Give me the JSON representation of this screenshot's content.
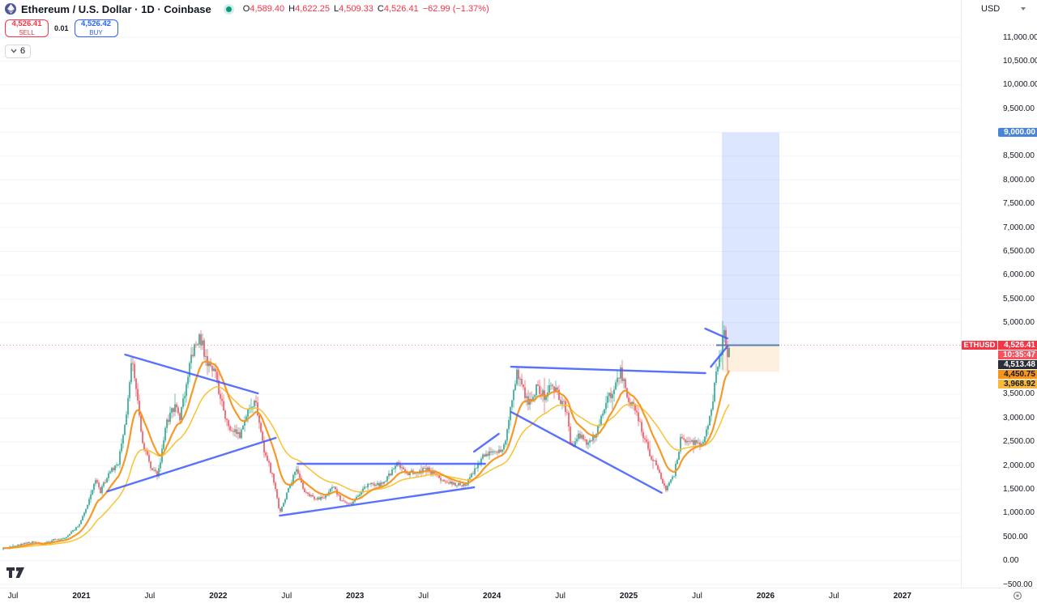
{
  "header": {
    "title": "Ethereum / U.S. Dollar · 1D · Coinbase",
    "ohlc": {
      "o_label": "O",
      "o": "4,589.40",
      "h_label": "H",
      "h": "4,622.25",
      "l_label": "L",
      "l": "4,509.33",
      "c_label": "C",
      "c": "4,526.41",
      "change": "−62.99 (−1.37%)"
    },
    "sell": {
      "price": "4,526.41",
      "label": "SELL"
    },
    "buy": {
      "price": "4,526.42",
      "label": "BUY"
    },
    "spread": "0.01",
    "indicators_count": "6",
    "currency": "USD"
  },
  "colors": {
    "up": "#089981",
    "down": "#f23645",
    "buy_blue": "#2962ff",
    "trendline": "#3d5afe",
    "ma_fast": "#f7941d",
    "ma_slow": "#fbbf24",
    "entry_line": "#5b7db1",
    "profit_fill": "rgba(41,98,255,0.16)",
    "stop_fill": "rgba(247,148,29,0.14)",
    "target_label_bg": "#4a84d9",
    "dark_label_bg": "#2a2e39",
    "orange_label_bg": "#f7941d",
    "amber_label_bg": "#f9b93c",
    "countdown_bg": "#f7525f",
    "grid": "#f1f3f8"
  },
  "price_axis": {
    "labels": [
      {
        "v": 11000,
        "label": "11,000.00"
      },
      {
        "v": 10500,
        "label": "10,500.00"
      },
      {
        "v": 10000,
        "label": "10,000.00"
      },
      {
        "v": 9500,
        "label": "9,500.00"
      },
      {
        "v": 9000,
        "label": "9,000.00"
      },
      {
        "v": 8500,
        "label": "8,500.00"
      },
      {
        "v": 8000,
        "label": "8,000.00"
      },
      {
        "v": 7500,
        "label": "7,500.00"
      },
      {
        "v": 7000,
        "label": "7,000.00"
      },
      {
        "v": 6500,
        "label": "6,500.00"
      },
      {
        "v": 6000,
        "label": "6,000.00"
      },
      {
        "v": 5500,
        "label": "5,500.00"
      },
      {
        "v": 5000,
        "label": "5,000.00"
      },
      {
        "v": 3500,
        "label": "3,500.00"
      },
      {
        "v": 3000,
        "label": "3,000.00"
      },
      {
        "v": 2500,
        "label": "2,500.00"
      },
      {
        "v": 2000,
        "label": "2,000.00"
      },
      {
        "v": 1500,
        "label": "1,500.00"
      },
      {
        "v": 1000,
        "label": "1,000.00"
      },
      {
        "v": 500,
        "label": "500.00"
      },
      {
        "v": 0,
        "label": "0.00"
      },
      {
        "v": -500,
        "label": "−500.00"
      }
    ],
    "target_marker": {
      "label": "9,000.00",
      "p": 9000
    },
    "symbol_marker": {
      "symbol": "ETHUSD",
      "price": "4,526.41",
      "countdown": "10:35:47",
      "p": 4526.41
    },
    "indicator_markers": [
      {
        "label": "4,513.48",
        "bg": "dark"
      },
      {
        "label": "4,450.75",
        "bg": "orange"
      },
      {
        "label": "3,968.92",
        "bg": "amber"
      }
    ]
  },
  "time_axis": {
    "labels": [
      {
        "label": "Jul",
        "t": 2020.5
      },
      {
        "label": "2021",
        "t": 2021,
        "year": true
      },
      {
        "label": "Jul",
        "t": 2021.5
      },
      {
        "label": "2022",
        "t": 2022,
        "year": true
      },
      {
        "label": "Jul",
        "t": 2022.5
      },
      {
        "label": "2023",
        "t": 2023,
        "year": true
      },
      {
        "label": "Jul",
        "t": 2023.5
      },
      {
        "label": "2024",
        "t": 2024,
        "year": true
      },
      {
        "label": "Jul",
        "t": 2024.5
      },
      {
        "label": "2025",
        "t": 2025,
        "year": true
      },
      {
        "label": "Jul",
        "t": 2025.5
      },
      {
        "label": "2026",
        "t": 2026,
        "year": true
      },
      {
        "label": "Jul",
        "t": 2026.5
      },
      {
        "label": "2027",
        "t": 2027,
        "year": true
      }
    ]
  },
  "chart_data": {
    "type": "candlestick",
    "symbol": "ETHUSD",
    "exchange": "Coinbase",
    "interval": "1D",
    "title": "Ethereum / U.S. Dollar",
    "last_bar": {
      "open": 4589.4,
      "high": 4622.25,
      "low": 4509.33,
      "close": 4526.41,
      "change": -62.99,
      "change_pct": -1.37
    },
    "y_axis": {
      "min": -500,
      "max": 11000,
      "step": 500
    },
    "x_axis": {
      "start": 2020.4,
      "end": 2027.6
    },
    "prev_close_line": 4526.41,
    "long_position": {
      "entry": 4526.41,
      "target": 9000,
      "stop": 3968.92,
      "t_start": 2025.681,
      "t_end": 2026.101,
      "entry_line_t_start": 2025.639
    },
    "indicator_values": [
      4513.48,
      4450.75,
      3968.92
    ],
    "price_path": [
      [
        2020.4,
        230
      ],
      [
        2020.55,
        340
      ],
      [
        2020.65,
        390
      ],
      [
        2020.72,
        350
      ],
      [
        2020.8,
        440
      ],
      [
        2020.88,
        470
      ],
      [
        2020.92,
        580
      ],
      [
        2020.98,
        740
      ],
      [
        2021.04,
        1150
      ],
      [
        2021.1,
        1700
      ],
      [
        2021.14,
        1450
      ],
      [
        2021.2,
        1850
      ],
      [
        2021.27,
        2050
      ],
      [
        2021.33,
        3150
      ],
      [
        2021.37,
        4200
      ],
      [
        2021.4,
        3600
      ],
      [
        2021.45,
        2400
      ],
      [
        2021.52,
        1900
      ],
      [
        2021.56,
        1800
      ],
      [
        2021.62,
        2900
      ],
      [
        2021.68,
        3250
      ],
      [
        2021.72,
        2950
      ],
      [
        2021.8,
        4300
      ],
      [
        2021.86,
        4750
      ],
      [
        2021.92,
        4150
      ],
      [
        2021.98,
        3900
      ],
      [
        2022.04,
        3100
      ],
      [
        2022.1,
        2700
      ],
      [
        2022.16,
        2650
      ],
      [
        2022.23,
        3200
      ],
      [
        2022.27,
        3400
      ],
      [
        2022.33,
        2350
      ],
      [
        2022.4,
        1750
      ],
      [
        2022.45,
        1000
      ],
      [
        2022.52,
        1550
      ],
      [
        2022.57,
        1900
      ],
      [
        2022.63,
        1450
      ],
      [
        2022.7,
        1300
      ],
      [
        2022.78,
        1320
      ],
      [
        2022.84,
        1550
      ],
      [
        2022.9,
        1250
      ],
      [
        2022.97,
        1200
      ],
      [
        2023.04,
        1400
      ],
      [
        2023.1,
        1650
      ],
      [
        2023.17,
        1580
      ],
      [
        2023.24,
        1750
      ],
      [
        2023.3,
        2050
      ],
      [
        2023.38,
        1830
      ],
      [
        2023.46,
        1870
      ],
      [
        2023.53,
        1920
      ],
      [
        2023.6,
        1780
      ],
      [
        2023.67,
        1640
      ],
      [
        2023.74,
        1600
      ],
      [
        2023.8,
        1560
      ],
      [
        2023.87,
        1900
      ],
      [
        2023.94,
        2200
      ],
      [
        2024.0,
        2300
      ],
      [
        2024.05,
        2280
      ],
      [
        2024.1,
        2450
      ],
      [
        2024.15,
        3500
      ],
      [
        2024.18,
        3950
      ],
      [
        2024.22,
        3600
      ],
      [
        2024.28,
        3300
      ],
      [
        2024.33,
        3700
      ],
      [
        2024.38,
        3450
      ],
      [
        2024.44,
        3650
      ],
      [
        2024.5,
        3400
      ],
      [
        2024.55,
        3150
      ],
      [
        2024.58,
        2350
      ],
      [
        2024.63,
        2650
      ],
      [
        2024.7,
        2450
      ],
      [
        2024.76,
        2650
      ],
      [
        2024.83,
        3300
      ],
      [
        2024.9,
        3650
      ],
      [
        2024.94,
        3950
      ],
      [
        2025.0,
        3350
      ],
      [
        2025.05,
        3150
      ],
      [
        2025.1,
        2700
      ],
      [
        2025.16,
        2200
      ],
      [
        2025.21,
        1950
      ],
      [
        2025.27,
        1500
      ],
      [
        2025.33,
        1800
      ],
      [
        2025.38,
        2550
      ],
      [
        2025.44,
        2500
      ],
      [
        2025.5,
        2450
      ],
      [
        2025.55,
        2550
      ],
      [
        2025.6,
        3100
      ],
      [
        2025.63,
        3700
      ],
      [
        2025.66,
        4300
      ],
      [
        2025.68,
        4500
      ],
      [
        2025.7,
        4850
      ],
      [
        2025.72,
        4350
      ],
      [
        2025.74,
        4526
      ]
    ],
    "trendlines": [
      [
        2021.32,
        4330,
        2022.29,
        3515
      ],
      [
        2021.19,
        1455,
        2022.42,
        2580
      ],
      [
        2022.58,
        2035,
        2023.95,
        2035
      ],
      [
        2022.45,
        945,
        2023.87,
        1540
      ],
      [
        2023.87,
        2290,
        2024.05,
        2665
      ],
      [
        2024.14,
        4075,
        2025.56,
        3940
      ],
      [
        2024.14,
        3125,
        2025.24,
        1425
      ],
      [
        2025.56,
        4875,
        2025.72,
        4670
      ],
      [
        2025.6,
        4075,
        2025.72,
        4500
      ]
    ]
  }
}
